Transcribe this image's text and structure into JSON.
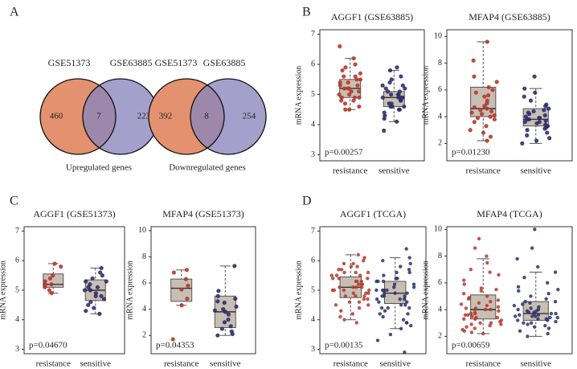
{
  "panel_labels": [
    "A",
    "B",
    "C",
    "D"
  ],
  "chart_data": [
    {
      "type": "venn",
      "sets": [
        "GSE51373",
        "GSE63885"
      ],
      "counts": [
        460,
        7,
        223
      ],
      "colors": [
        "#e3916f",
        "#8985bd"
      ],
      "label": "Upregulated genes"
    },
    {
      "type": "venn",
      "sets": [
        "GSE51373",
        "GSE63885"
      ],
      "counts": [
        392,
        8,
        254
      ],
      "colors": [
        "#e3916f",
        "#8985bd"
      ],
      "label": "Downregulated genes"
    },
    {
      "type": "box",
      "title": "AGGF1 (GSE63885)",
      "ylabel": "mRNA expression",
      "categories": [
        "resistance",
        "sensitive"
      ],
      "category_colors": [
        "#c0392b",
        "#4b4b9e"
      ],
      "ylim": [
        2.8,
        7.15
      ],
      "yticks": [
        3,
        4,
        5,
        6,
        7
      ],
      "annotation": "p=0.00257",
      "box_color": "#c9beb3",
      "series": [
        {
          "color": "#b23a2e",
          "box": {
            "whisker_low": 4.5,
            "q1": 4.9,
            "median": 5.2,
            "q3": 5.5,
            "whisker_high": 6.2
          },
          "points": [
            6.6,
            6.2,
            5.9,
            5.8,
            5.7,
            5.6,
            5.6,
            5.5,
            5.5,
            5.4,
            5.4,
            5.3,
            5.3,
            5.2,
            5.2,
            5.2,
            5.1,
            5.1,
            5.0,
            5.0,
            4.9,
            4.9,
            4.9,
            4.8,
            4.8,
            4.7,
            4.6,
            4.5,
            4.5,
            6.0
          ]
        },
        {
          "color": "#2c2f6b",
          "box": {
            "whisker_low": 4.1,
            "q1": 4.6,
            "median": 4.9,
            "q3": 5.1,
            "whisker_high": 5.8
          },
          "points": [
            5.9,
            5.8,
            5.6,
            5.5,
            5.4,
            5.3,
            5.2,
            5.2,
            5.1,
            5.1,
            5.0,
            5.0,
            5.0,
            4.9,
            4.9,
            4.9,
            4.8,
            4.8,
            4.7,
            4.7,
            4.6,
            4.6,
            4.5,
            4.5,
            4.4,
            4.3,
            4.2,
            4.1,
            3.8,
            5.3,
            4.9,
            4.6
          ]
        }
      ]
    },
    {
      "type": "box",
      "title": "MFAP4 (GSE63885)",
      "ylabel": "mRNA expression",
      "categories": [
        "resistance",
        "sensitive"
      ],
      "category_colors": [
        "#c0392b",
        "#4b4b9e"
      ],
      "ylim": [
        0.7,
        10.5
      ],
      "yticks": [
        2,
        4,
        6,
        8,
        10
      ],
      "annotation": "p=0.01230",
      "box_color": "#c9beb3",
      "series": [
        {
          "color": "#b23a2e",
          "box": {
            "whisker_low": 2.2,
            "q1": 4.0,
            "median": 4.6,
            "q3": 6.2,
            "whisker_high": 9.6
          },
          "points": [
            9.6,
            8.2,
            7.0,
            6.6,
            6.2,
            6.0,
            5.8,
            5.5,
            5.2,
            5.0,
            4.8,
            4.7,
            4.6,
            4.5,
            4.4,
            4.3,
            4.2,
            4.1,
            4.0,
            3.9,
            3.8,
            3.6,
            3.3,
            3.0,
            2.8,
            2.5,
            2.2,
            5.6
          ]
        },
        {
          "color": "#2c2f6b",
          "box": {
            "whisker_low": 2.0,
            "q1": 3.3,
            "median": 3.8,
            "q3": 4.6,
            "whisker_high": 6.1
          },
          "points": [
            7.0,
            6.1,
            5.8,
            5.5,
            5.2,
            4.9,
            4.6,
            4.5,
            4.4,
            4.3,
            4.2,
            4.1,
            4.0,
            3.9,
            3.9,
            3.8,
            3.8,
            3.7,
            3.6,
            3.5,
            3.4,
            3.3,
            3.2,
            3.1,
            3.0,
            2.8,
            2.6,
            2.4,
            2.2,
            2.0,
            4.8,
            3.6
          ]
        }
      ]
    },
    {
      "type": "box",
      "title": "AGGF1 (GSE51373)",
      "ylabel": "mRNA expression",
      "categories": [
        "resistance",
        "sensitive"
      ],
      "category_colors": [
        "#c0392b",
        "#4b4b9e"
      ],
      "ylim": [
        2.85,
        7.15
      ],
      "yticks": [
        3,
        4,
        5,
        6,
        7
      ],
      "annotation": "p=0.04670",
      "box_color": "#c9beb3",
      "series": [
        {
          "color": "#b23a2e",
          "box": {
            "whisker_low": 4.9,
            "q1": 5.1,
            "median": 5.2,
            "q3": 5.55,
            "whisker_high": 5.9
          },
          "points": [
            5.9,
            5.8,
            5.5,
            5.4,
            5.3,
            5.2,
            5.2,
            5.1,
            5.0,
            4.9
          ]
        },
        {
          "color": "#2c2f6b",
          "box": {
            "whisker_low": 4.2,
            "q1": 4.65,
            "median": 5.0,
            "q3": 5.35,
            "whisker_high": 5.75
          },
          "points": [
            5.75,
            5.6,
            5.5,
            5.4,
            5.3,
            5.2,
            5.1,
            5.1,
            5.0,
            5.0,
            4.9,
            4.8,
            4.7,
            4.6,
            4.5,
            4.4,
            4.3,
            4.2,
            5.3,
            4.8
          ]
        }
      ]
    },
    {
      "type": "box",
      "title": "MFAP4 (GSE51373)",
      "ylabel": "mRNA expression",
      "categories": [
        "resistance",
        "sensitive"
      ],
      "category_colors": [
        "#c0392b",
        "#4b4b9e"
      ],
      "ylim": [
        0.6,
        10.3
      ],
      "yticks": [
        2,
        4,
        6,
        8,
        10
      ],
      "annotation": "p=0.04353",
      "box_color": "#c9beb3",
      "series": [
        {
          "color": "#b23a2e",
          "box": {
            "whisker_low": 4.3,
            "q1": 4.6,
            "median": 5.6,
            "q3": 6.3,
            "whisker_high": 7.0
          },
          "points": [
            7.0,
            6.8,
            6.3,
            5.8,
            5.5,
            4.8,
            4.3,
            1.7
          ]
        },
        {
          "color": "#2c2f6b",
          "box": {
            "whisker_low": 2.0,
            "q1": 2.6,
            "median": 3.8,
            "q3": 5.0,
            "whisker_high": 7.3
          },
          "points": [
            7.3,
            5.4,
            5.0,
            4.8,
            4.5,
            4.2,
            4.0,
            3.9,
            3.8,
            3.6,
            3.2,
            3.0,
            2.7,
            2.5,
            2.3,
            2.1,
            2.0,
            4.6
          ]
        }
      ]
    },
    {
      "type": "box",
      "title": "AGGF1 (TCGA)",
      "ylabel": "mRNA expression",
      "categories": [
        "resistance",
        "sensitive"
      ],
      "category_colors": [
        "#c0392b",
        "#4b4b9e"
      ],
      "ylim": [
        2.85,
        7.15
      ],
      "yticks": [
        3,
        4,
        5,
        6,
        7
      ],
      "annotation": "p=0.00135",
      "box_color": "#c9beb3",
      "series": [
        {
          "color": "#b23a2e",
          "box": {
            "whisker_low": 4.0,
            "q1": 4.75,
            "median": 5.1,
            "q3": 5.45,
            "whisker_high": 6.2
          },
          "points": [
            6.2,
            6.1,
            6.0,
            5.9,
            5.9,
            5.8,
            5.8,
            5.7,
            5.7,
            5.6,
            5.6,
            5.5,
            5.5,
            5.5,
            5.4,
            5.4,
            5.4,
            5.3,
            5.3,
            5.3,
            5.2,
            5.2,
            5.2,
            5.1,
            5.1,
            5.1,
            5.1,
            5.0,
            5.0,
            5.0,
            4.9,
            4.9,
            4.9,
            4.8,
            4.8,
            4.8,
            4.7,
            4.7,
            4.6,
            4.6,
            4.5,
            4.5,
            4.4,
            4.3,
            4.2,
            4.1,
            4.0,
            3.9,
            5.6,
            5.0
          ]
        },
        {
          "color": "#2c2f6b",
          "box": {
            "whisker_low": 3.7,
            "q1": 4.55,
            "median": 4.9,
            "q3": 5.3,
            "whisker_high": 6.1
          },
          "points": [
            6.4,
            6.1,
            6.0,
            5.9,
            5.8,
            5.7,
            5.6,
            5.6,
            5.5,
            5.4,
            5.4,
            5.3,
            5.3,
            5.2,
            5.2,
            5.1,
            5.1,
            5.0,
            5.0,
            5.0,
            4.9,
            4.9,
            4.9,
            4.8,
            4.8,
            4.8,
            4.7,
            4.7,
            4.6,
            4.6,
            4.5,
            4.5,
            4.4,
            4.4,
            4.3,
            4.2,
            4.1,
            4.0,
            3.9,
            3.8,
            3.7,
            3.5,
            3.3,
            2.9,
            5.3,
            5.0,
            4.7,
            4.4,
            4.2,
            3.9
          ]
        }
      ]
    },
    {
      "type": "box",
      "title": "MFAP4 (TCGA)",
      "ylabel": "mRNA expression",
      "categories": [
        "resistance",
        "sensitive"
      ],
      "category_colors": [
        "#c0392b",
        "#4b4b9e"
      ],
      "ylim": [
        0.7,
        10.2
      ],
      "yticks": [
        2,
        4,
        6,
        8,
        10
      ],
      "annotation": "p=0.00659",
      "box_color": "#c9beb3",
      "series": [
        {
          "color": "#b23a2e",
          "box": {
            "whisker_low": 2.2,
            "q1": 3.3,
            "median": 4.0,
            "q3": 5.1,
            "whisker_high": 7.8
          },
          "points": [
            9.3,
            8.6,
            8.0,
            7.5,
            7.0,
            6.6,
            6.2,
            5.9,
            5.6,
            5.4,
            5.2,
            5.0,
            4.9,
            4.8,
            4.6,
            4.5,
            4.4,
            4.3,
            4.2,
            4.1,
            4.0,
            4.0,
            3.9,
            3.8,
            3.7,
            3.7,
            3.6,
            3.5,
            3.4,
            3.3,
            3.3,
            3.2,
            3.1,
            3.0,
            3.0,
            2.9,
            2.8,
            2.7,
            2.6,
            2.5,
            2.4,
            2.3,
            2.2,
            4.7,
            4.1,
            3.6,
            3.4,
            5.5,
            6.8,
            2.9
          ]
        },
        {
          "color": "#2c2f6b",
          "box": {
            "whisker_low": 2.0,
            "q1": 3.2,
            "median": 3.7,
            "q3": 4.6,
            "whisker_high": 6.8
          },
          "points": [
            10.0,
            8.6,
            7.8,
            7.2,
            6.8,
            6.4,
            6.0,
            5.7,
            5.4,
            5.2,
            5.0,
            4.8,
            4.6,
            4.5,
            4.4,
            4.3,
            4.2,
            4.1,
            4.0,
            3.9,
            3.9,
            3.8,
            3.8,
            3.7,
            3.7,
            3.6,
            3.6,
            3.5,
            3.5,
            3.4,
            3.4,
            3.3,
            3.3,
            3.2,
            3.2,
            3.1,
            3.0,
            2.9,
            2.8,
            2.7,
            2.6,
            2.4,
            2.2,
            2.0,
            4.0,
            3.7,
            3.5,
            4.6,
            5.5,
            3.0
          ]
        }
      ]
    }
  ]
}
